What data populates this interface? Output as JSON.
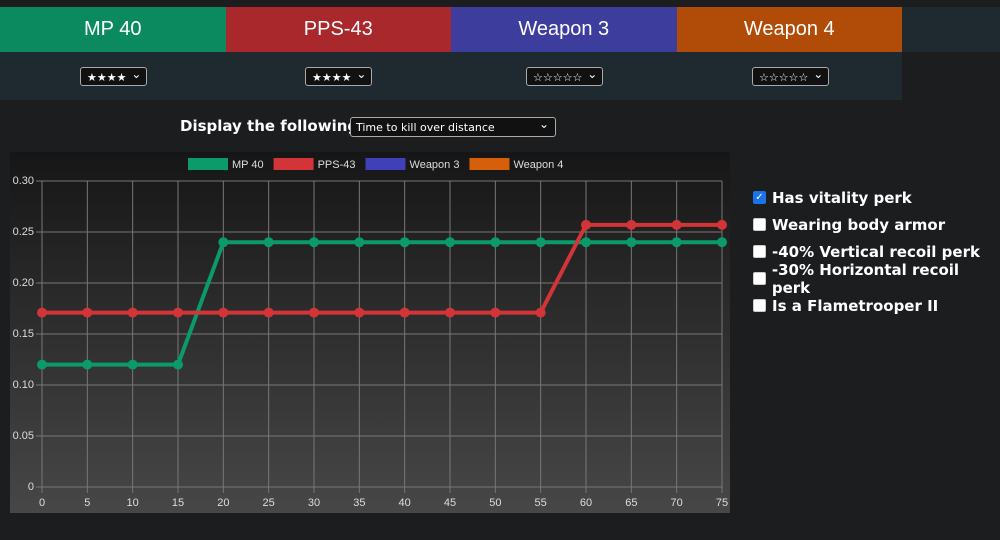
{
  "tabs": [
    {
      "name": "MP 40",
      "rating": "★★★★",
      "color": "#0b8a60"
    },
    {
      "name": "PPS-43",
      "rating": "★★★★",
      "color": "#a8282c"
    },
    {
      "name": "Weapon 3",
      "rating": "☆☆☆☆☆",
      "color": "#3d3d9e"
    },
    {
      "name": "Weapon 4",
      "rating": "☆☆☆☆☆",
      "color": "#b04b08"
    }
  ],
  "display": {
    "label": "Display the following:",
    "selected": "Time to kill over distance"
  },
  "options": [
    {
      "label": "Has vitality perk",
      "checked": true
    },
    {
      "label": "Wearing body armor",
      "checked": false
    },
    {
      "label": "-40% Vertical recoil perk",
      "checked": false
    },
    {
      "label": "-30% Horizontal recoil perk",
      "checked": false
    },
    {
      "label": "Is a Flametrooper II",
      "checked": false
    }
  ],
  "chart_data": {
    "type": "line",
    "x": [
      0,
      5,
      10,
      15,
      20,
      25,
      30,
      35,
      40,
      45,
      50,
      55,
      60,
      65,
      70,
      75
    ],
    "series": [
      {
        "name": "MP 40",
        "color": "#0b9a6a",
        "values": [
          0.12,
          0.12,
          0.12,
          0.12,
          0.24,
          0.24,
          0.24,
          0.24,
          0.24,
          0.24,
          0.24,
          0.24,
          0.24,
          0.24,
          0.24,
          0.24
        ]
      },
      {
        "name": "PPS-43",
        "color": "#d33438",
        "values": [
          0.171,
          0.171,
          0.171,
          0.171,
          0.171,
          0.171,
          0.171,
          0.171,
          0.171,
          0.171,
          0.171,
          0.171,
          0.257,
          0.257,
          0.257,
          0.257
        ]
      },
      {
        "name": "Weapon 3",
        "color": "#4040b8"
      },
      {
        "name": "Weapon 4",
        "color": "#d65f0a"
      }
    ],
    "xlim": [
      0,
      75
    ],
    "xticks": [
      0,
      5,
      10,
      15,
      20,
      25,
      30,
      35,
      40,
      45,
      50,
      55,
      60,
      65,
      70,
      75
    ],
    "ylim": [
      0,
      0.3
    ],
    "yticks": [
      0,
      0.05,
      {
        "value": 0.1,
        "label": "0.10"
      },
      0.15,
      {
        "value": 0.2,
        "label": "0.20"
      },
      0.25,
      {
        "value": 0.3,
        "label": "0.30"
      }
    ],
    "grid": true
  }
}
